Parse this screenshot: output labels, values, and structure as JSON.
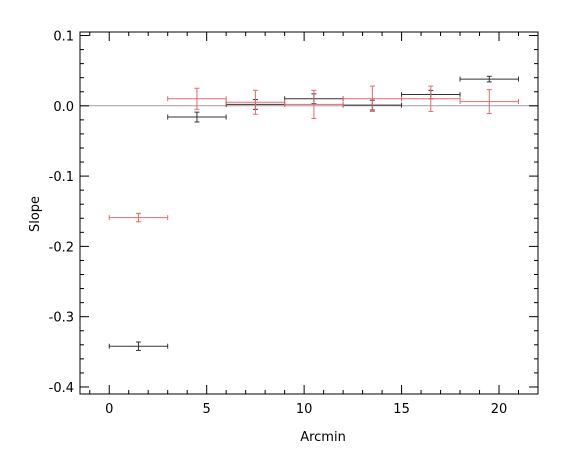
{
  "chart_data": {
    "type": "scatter",
    "title": "",
    "xlabel": "Arcmin",
    "ylabel": "Slope",
    "xlim": [
      -1.5,
      22
    ],
    "ylim": [
      -0.41,
      0.105
    ],
    "xticks": [
      0,
      5,
      10,
      15,
      20
    ],
    "xtick_labels": [
      "0",
      "5",
      "10",
      "15",
      "20"
    ],
    "yticks": [
      -0.4,
      -0.3,
      -0.2,
      -0.1,
      0.0,
      0.1
    ],
    "ytick_labels": [
      "-0.4",
      "-0.3",
      "-0.2",
      "-0.1",
      "0.0",
      "0.1"
    ],
    "x_minor_step": 1,
    "y_minor_step": 0.02,
    "reference_line_y": 0.0,
    "grid": false,
    "colors": {
      "series_black": "#333333",
      "series_red": "#e8686b",
      "reference_line": "#a0a0a0"
    },
    "series": [
      {
        "color": "#333333",
        "points": [
          {
            "x": 1.5,
            "y": -0.342,
            "xerr": 1.5,
            "yerr": 0.006
          },
          {
            "x": 4.5,
            "y": -0.016,
            "xerr": 1.5,
            "yerr": 0.007
          },
          {
            "x": 7.5,
            "y": 0.002,
            "xerr": 1.5,
            "yerr": 0.007
          },
          {
            "x": 10.5,
            "y": 0.01,
            "xerr": 1.5,
            "yerr": 0.007
          },
          {
            "x": 13.5,
            "y": 0.001,
            "xerr": 1.5,
            "yerr": 0.007
          },
          {
            "x": 16.5,
            "y": 0.016,
            "xerr": 1.5,
            "yerr": 0.006
          },
          {
            "x": 19.5,
            "y": 0.038,
            "xerr": 1.5,
            "yerr": 0.004
          }
        ]
      },
      {
        "color": "#e8686b",
        "points": [
          {
            "x": 1.5,
            "y": -0.159,
            "xerr": 1.5,
            "yerr": 0.006
          },
          {
            "x": 4.5,
            "y": 0.01,
            "xerr": 1.5,
            "yerr": 0.015
          },
          {
            "x": 7.5,
            "y": 0.005,
            "xerr": 1.5,
            "yerr": 0.017
          },
          {
            "x": 10.5,
            "y": 0.002,
            "xerr": 1.5,
            "yerr": 0.02
          },
          {
            "x": 13.5,
            "y": 0.01,
            "xerr": 1.5,
            "yerr": 0.018
          },
          {
            "x": 16.5,
            "y": 0.01,
            "xerr": 1.5,
            "yerr": 0.018
          },
          {
            "x": 19.5,
            "y": 0.006,
            "xerr": 1.5,
            "yerr": 0.017
          }
        ]
      }
    ]
  }
}
